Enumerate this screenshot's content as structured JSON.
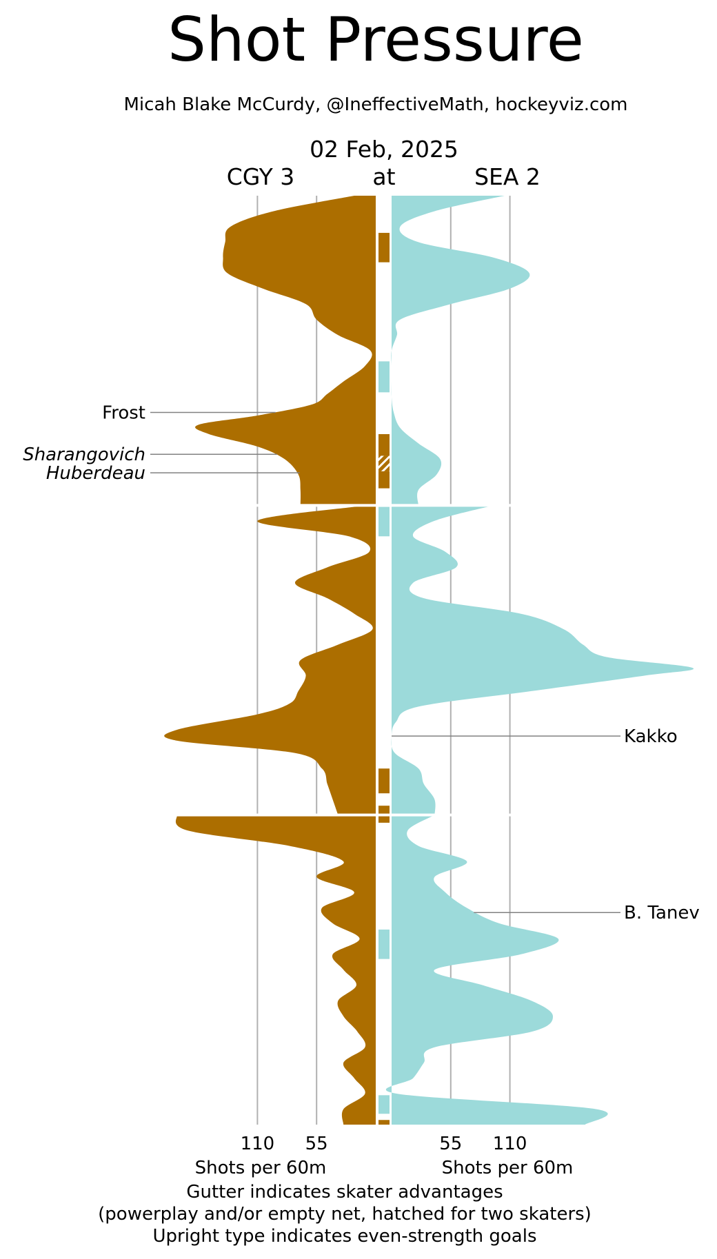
{
  "chart_data": {
    "type": "area",
    "title": "Shot Pressure",
    "subtitle": "Micah Blake McCurdy, @IneffectiveMath, hockeyviz.com",
    "date": "02 Feb, 2025",
    "away": {
      "label": "CGY 3",
      "color": "#ac6e00"
    },
    "at_label": "at",
    "home": {
      "label": "SEA 2",
      "color": "#9cdada"
    },
    "x_ticks": [
      110,
      55
    ],
    "x_label": "Shots per 60m",
    "x_max": 180,
    "grid": true,
    "periods": 3,
    "period_minutes": 20,
    "footnotes": [
      "Gutter indicates skater advantages",
      "(powerplay and/or empty net, hatched for two skaters)",
      "Upright type indicates even-strength goals"
    ],
    "series": [
      {
        "team": "CGY",
        "points": [
          [
            0,
            20
          ],
          [
            1,
            95
          ],
          [
            2,
            135
          ],
          [
            3,
            140
          ],
          [
            4,
            142
          ],
          [
            5,
            138
          ],
          [
            6,
            105
          ],
          [
            7,
            65
          ],
          [
            8,
            55
          ],
          [
            9,
            35
          ],
          [
            10,
            5
          ],
          [
            11,
            10
          ],
          [
            12,
            30
          ],
          [
            12.8,
            45
          ],
          [
            13.5,
            60
          ],
          [
            14.2,
            110
          ],
          [
            14.8,
            165
          ],
          [
            15.4,
            155
          ],
          [
            16.2,
            110
          ],
          [
            17,
            85
          ],
          [
            18,
            72
          ],
          [
            19,
            70
          ],
          [
            20,
            70
          ],
          [
            20,
            8
          ],
          [
            21,
            110
          ],
          [
            22,
            25
          ],
          [
            23,
            6
          ],
          [
            24,
            45
          ],
          [
            25,
            75
          ],
          [
            26,
            45
          ],
          [
            27,
            20
          ],
          [
            28,
            3
          ],
          [
            29,
            35
          ],
          [
            30,
            70
          ],
          [
            31,
            65
          ],
          [
            32,
            72
          ],
          [
            32.8,
            80
          ],
          [
            33.5,
            110
          ],
          [
            34.5,
            185
          ],
          [
            35.2,
            185
          ],
          [
            36,
            75
          ],
          [
            37,
            50
          ],
          [
            38,
            45
          ],
          [
            39,
            40
          ],
          [
            40,
            35
          ],
          [
            40,
            185
          ],
          [
            41,
            175
          ],
          [
            42,
            80
          ],
          [
            43,
            30
          ],
          [
            44,
            55
          ],
          [
            45,
            20
          ],
          [
            46,
            50
          ],
          [
            47,
            40
          ],
          [
            48,
            15
          ],
          [
            49,
            40
          ],
          [
            50,
            30
          ],
          [
            51,
            18
          ],
          [
            52,
            35
          ],
          [
            53,
            30
          ],
          [
            54,
            17
          ],
          [
            55,
            10
          ],
          [
            56,
            30
          ],
          [
            57,
            20
          ],
          [
            58,
            10
          ],
          [
            59,
            30
          ],
          [
            60,
            30
          ]
        ]
      },
      {
        "team": "SEA",
        "points": [
          [
            0,
            105
          ],
          [
            1,
            40
          ],
          [
            2,
            8
          ],
          [
            3,
            25
          ],
          [
            4,
            95
          ],
          [
            5,
            128
          ],
          [
            6,
            110
          ],
          [
            7,
            55
          ],
          [
            8,
            8
          ],
          [
            9,
            5
          ],
          [
            10,
            0
          ],
          [
            11,
            0
          ],
          [
            12,
            0
          ],
          [
            13,
            0
          ],
          [
            14,
            2
          ],
          [
            15,
            8
          ],
          [
            16,
            25
          ],
          [
            17,
            45
          ],
          [
            18,
            42
          ],
          [
            19,
            25
          ],
          [
            20,
            25
          ],
          [
            20,
            95
          ],
          [
            21,
            40
          ],
          [
            22,
            20
          ],
          [
            23,
            50
          ],
          [
            24,
            60
          ],
          [
            25,
            20
          ],
          [
            26,
            30
          ],
          [
            27,
            120
          ],
          [
            28,
            160
          ],
          [
            29,
            178
          ],
          [
            29.8,
            200
          ],
          [
            30.5,
            280
          ],
          [
            31,
            235
          ],
          [
            32,
            130
          ],
          [
            33,
            25
          ],
          [
            34,
            4
          ],
          [
            35,
            0
          ],
          [
            36,
            3
          ],
          [
            37,
            25
          ],
          [
            38,
            30
          ],
          [
            39,
            40
          ],
          [
            40,
            40
          ],
          [
            40,
            40
          ],
          [
            41,
            15
          ],
          [
            42,
            25
          ],
          [
            43,
            70
          ],
          [
            44,
            40
          ],
          [
            45,
            50
          ],
          [
            46,
            70
          ],
          [
            47,
            100
          ],
          [
            48,
            155
          ],
          [
            49,
            120
          ],
          [
            50,
            40
          ],
          [
            51,
            85
          ],
          [
            52,
            130
          ],
          [
            53,
            150
          ],
          [
            54,
            130
          ],
          [
            55,
            40
          ],
          [
            56,
            30
          ],
          [
            57,
            20
          ],
          [
            58,
            5
          ],
          [
            59,
            190
          ],
          [
            60,
            180
          ]
        ]
      }
    ],
    "gutter": [
      {
        "team": "CGY",
        "start": 2.4,
        "end": 4.3,
        "hatched": false
      },
      {
        "team": "SEA",
        "start": 10.7,
        "end": 12.7,
        "hatched": false
      },
      {
        "team": "CGY",
        "start": 15.4,
        "end": 16.8,
        "hatched": false
      },
      {
        "team": "CGY",
        "start": 16.8,
        "end": 17.8,
        "hatched": true
      },
      {
        "team": "CGY",
        "start": 17.8,
        "end": 18.9,
        "hatched": false
      },
      {
        "team": "SEA",
        "start": 20.1,
        "end": 22.0,
        "hatched": false
      },
      {
        "team": "CGY",
        "start": 37.0,
        "end": 38.6,
        "hatched": false
      },
      {
        "team": "CGY",
        "start": 39.4,
        "end": 40.5,
        "hatched": false
      },
      {
        "team": "SEA",
        "start": 47.4,
        "end": 49.3,
        "hatched": false
      },
      {
        "team": "SEA",
        "start": 58.1,
        "end": 59.3,
        "hatched": false
      },
      {
        "team": "CGY",
        "start": 59.7,
        "end": 60.0,
        "hatched": false
      }
    ],
    "goals": [
      {
        "team": "CGY",
        "player": "Frost",
        "time": 14.0,
        "even_strength": true
      },
      {
        "team": "CGY",
        "player": "Sharangovich",
        "time": 16.7,
        "even_strength": false
      },
      {
        "team": "CGY",
        "player": "Huberdeau",
        "time": 17.9,
        "even_strength": false
      },
      {
        "team": "SEA",
        "player": "Kakko",
        "time": 34.9,
        "even_strength": true
      },
      {
        "team": "SEA",
        "player": "B. Tanev",
        "time": 46.3,
        "even_strength": true
      }
    ]
  }
}
